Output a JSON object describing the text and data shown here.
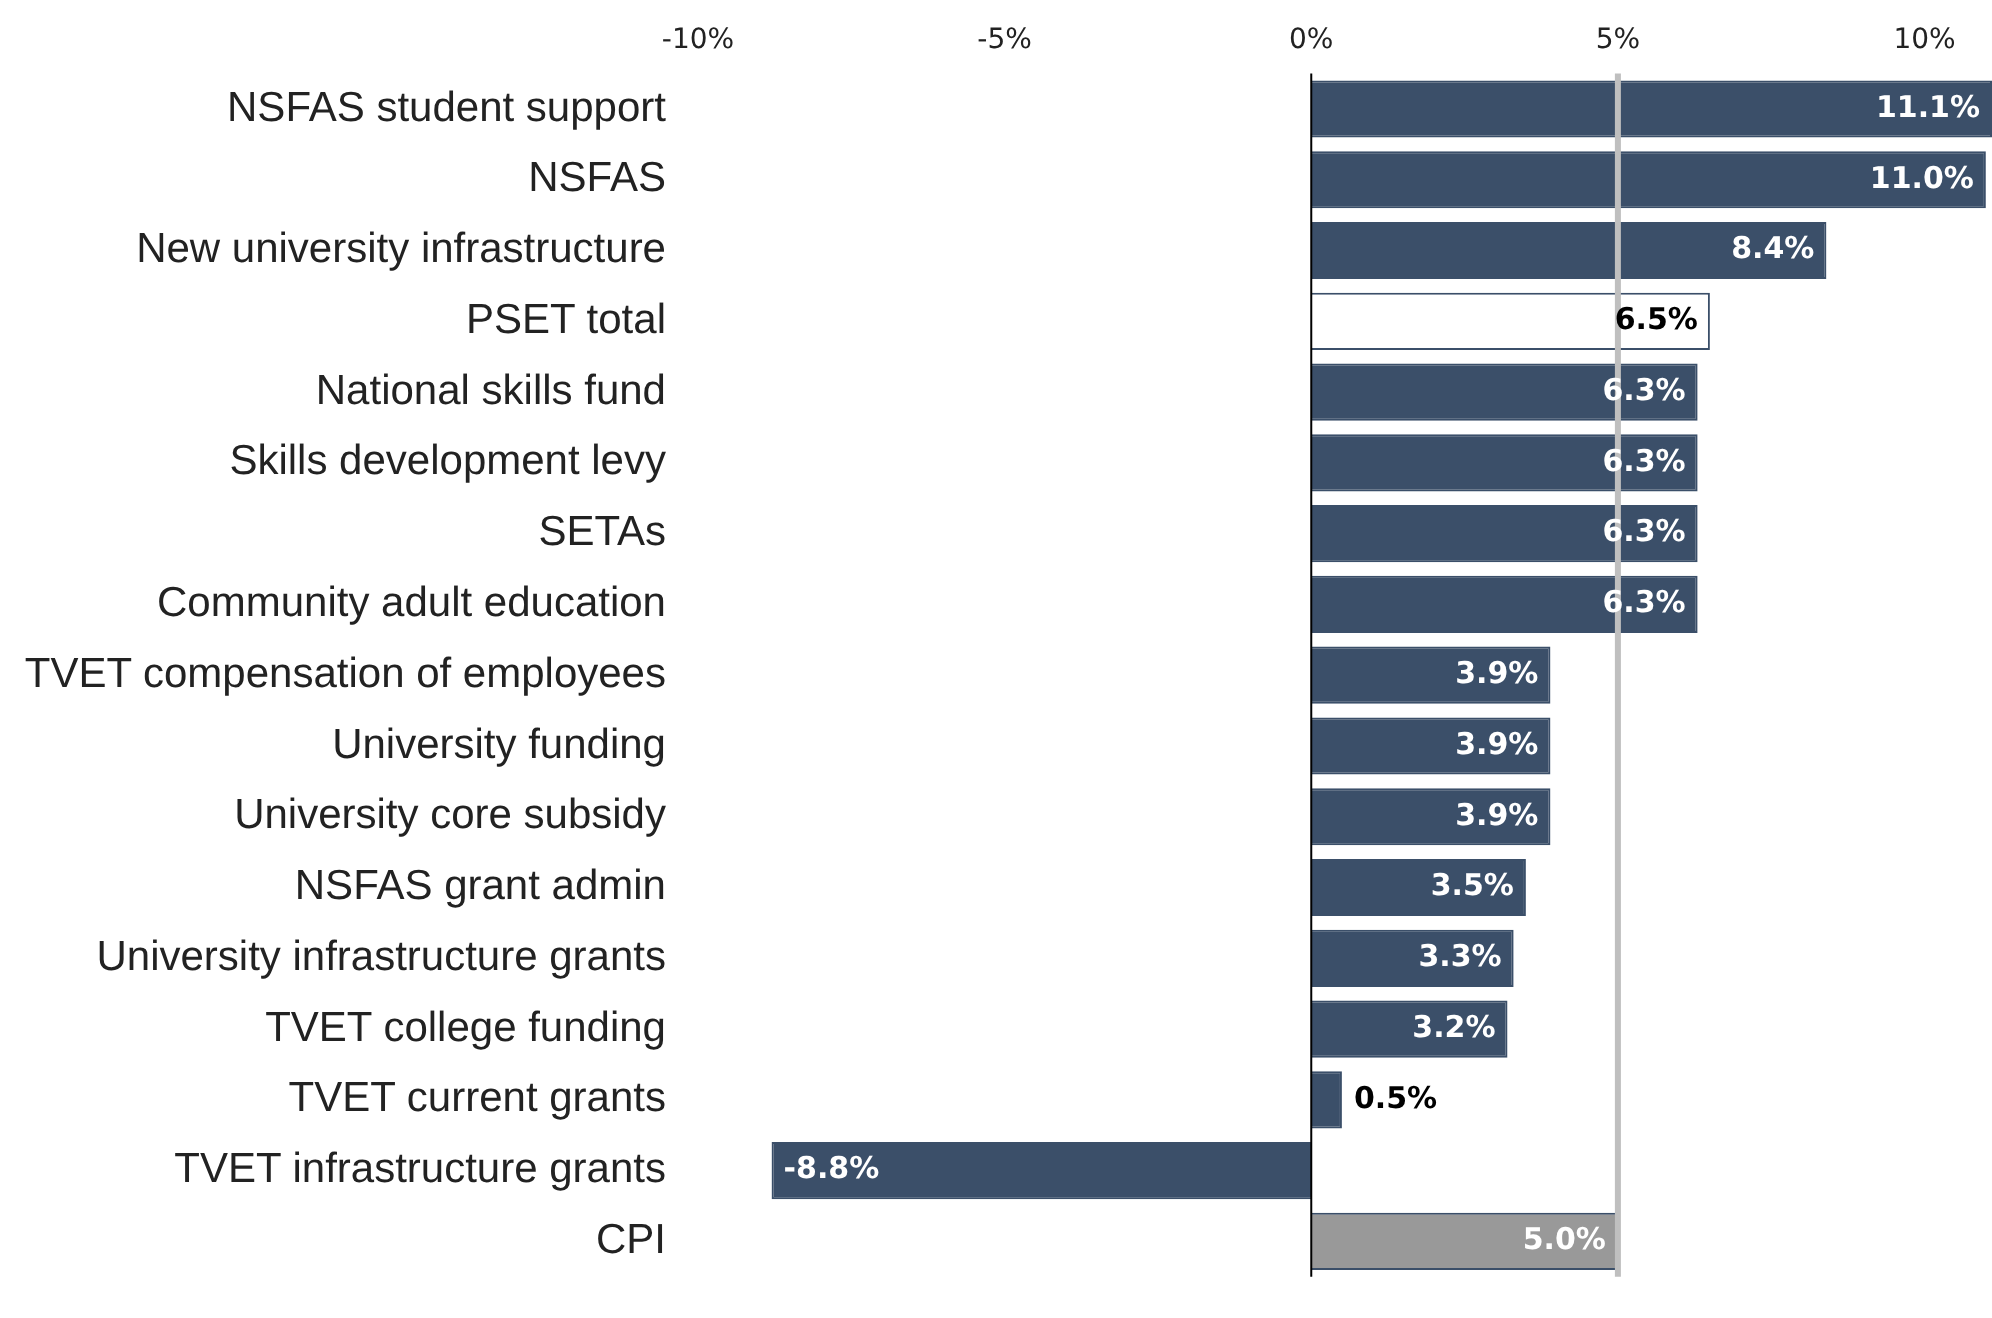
{
  "chart_data": {
    "type": "bar",
    "orientation": "horizontal",
    "categories": [
      "NSFAS student support",
      "NSFAS",
      "New university infrastructure",
      "PSET total",
      "National skills fund",
      "Skills development levy",
      "SETAs",
      "Community adult education",
      "TVET compensation of employees",
      "University funding",
      "University core subsidy",
      "NSFAS grant admin",
      "University infrastructure grants",
      "TVET college funding",
      "TVET current grants",
      "TVET infrastructure grants",
      "CPI"
    ],
    "values": [
      11.1,
      11.0,
      8.4,
      6.5,
      6.3,
      6.3,
      6.3,
      6.3,
      3.9,
      3.9,
      3.9,
      3.5,
      3.3,
      3.2,
      0.5,
      -8.8,
      5.0
    ],
    "colors": [
      "#3b4f69",
      "#3b4f69",
      "#3b4f69",
      "#ffffff",
      "#3b4f69",
      "#3b4f69",
      "#3b4f69",
      "#3b4f69",
      "#3b4f69",
      "#3b4f69",
      "#3b4f69",
      "#3b4f69",
      "#3b4f69",
      "#3b4f69",
      "#3b4f69",
      "#3b4f69",
      "#999999"
    ],
    "value_labels": [
      "11.1%",
      "11.0%",
      "8.4%",
      "6.5%",
      "6.3%",
      "6.3%",
      "6.3%",
      "6.3%",
      "3.9%",
      "3.9%",
      "3.9%",
      "3.5%",
      "3.3%",
      "3.2%",
      "0.5%",
      "-8.8%",
      "5.0%"
    ],
    "xlim": [
      -10,
      11.1
    ],
    "xticks": [
      {
        "value": -10,
        "label": "-10%"
      },
      {
        "value": -5,
        "label": "-5%"
      },
      {
        "value": 0,
        "label": "0%"
      },
      {
        "value": 5,
        "label": "5%"
      },
      {
        "value": 10,
        "label": "10%"
      }
    ],
    "ref_lines": [
      {
        "axis": "x",
        "value": 5,
        "color": "#bfbfbf"
      }
    ],
    "grid": false,
    "legend": false
  }
}
